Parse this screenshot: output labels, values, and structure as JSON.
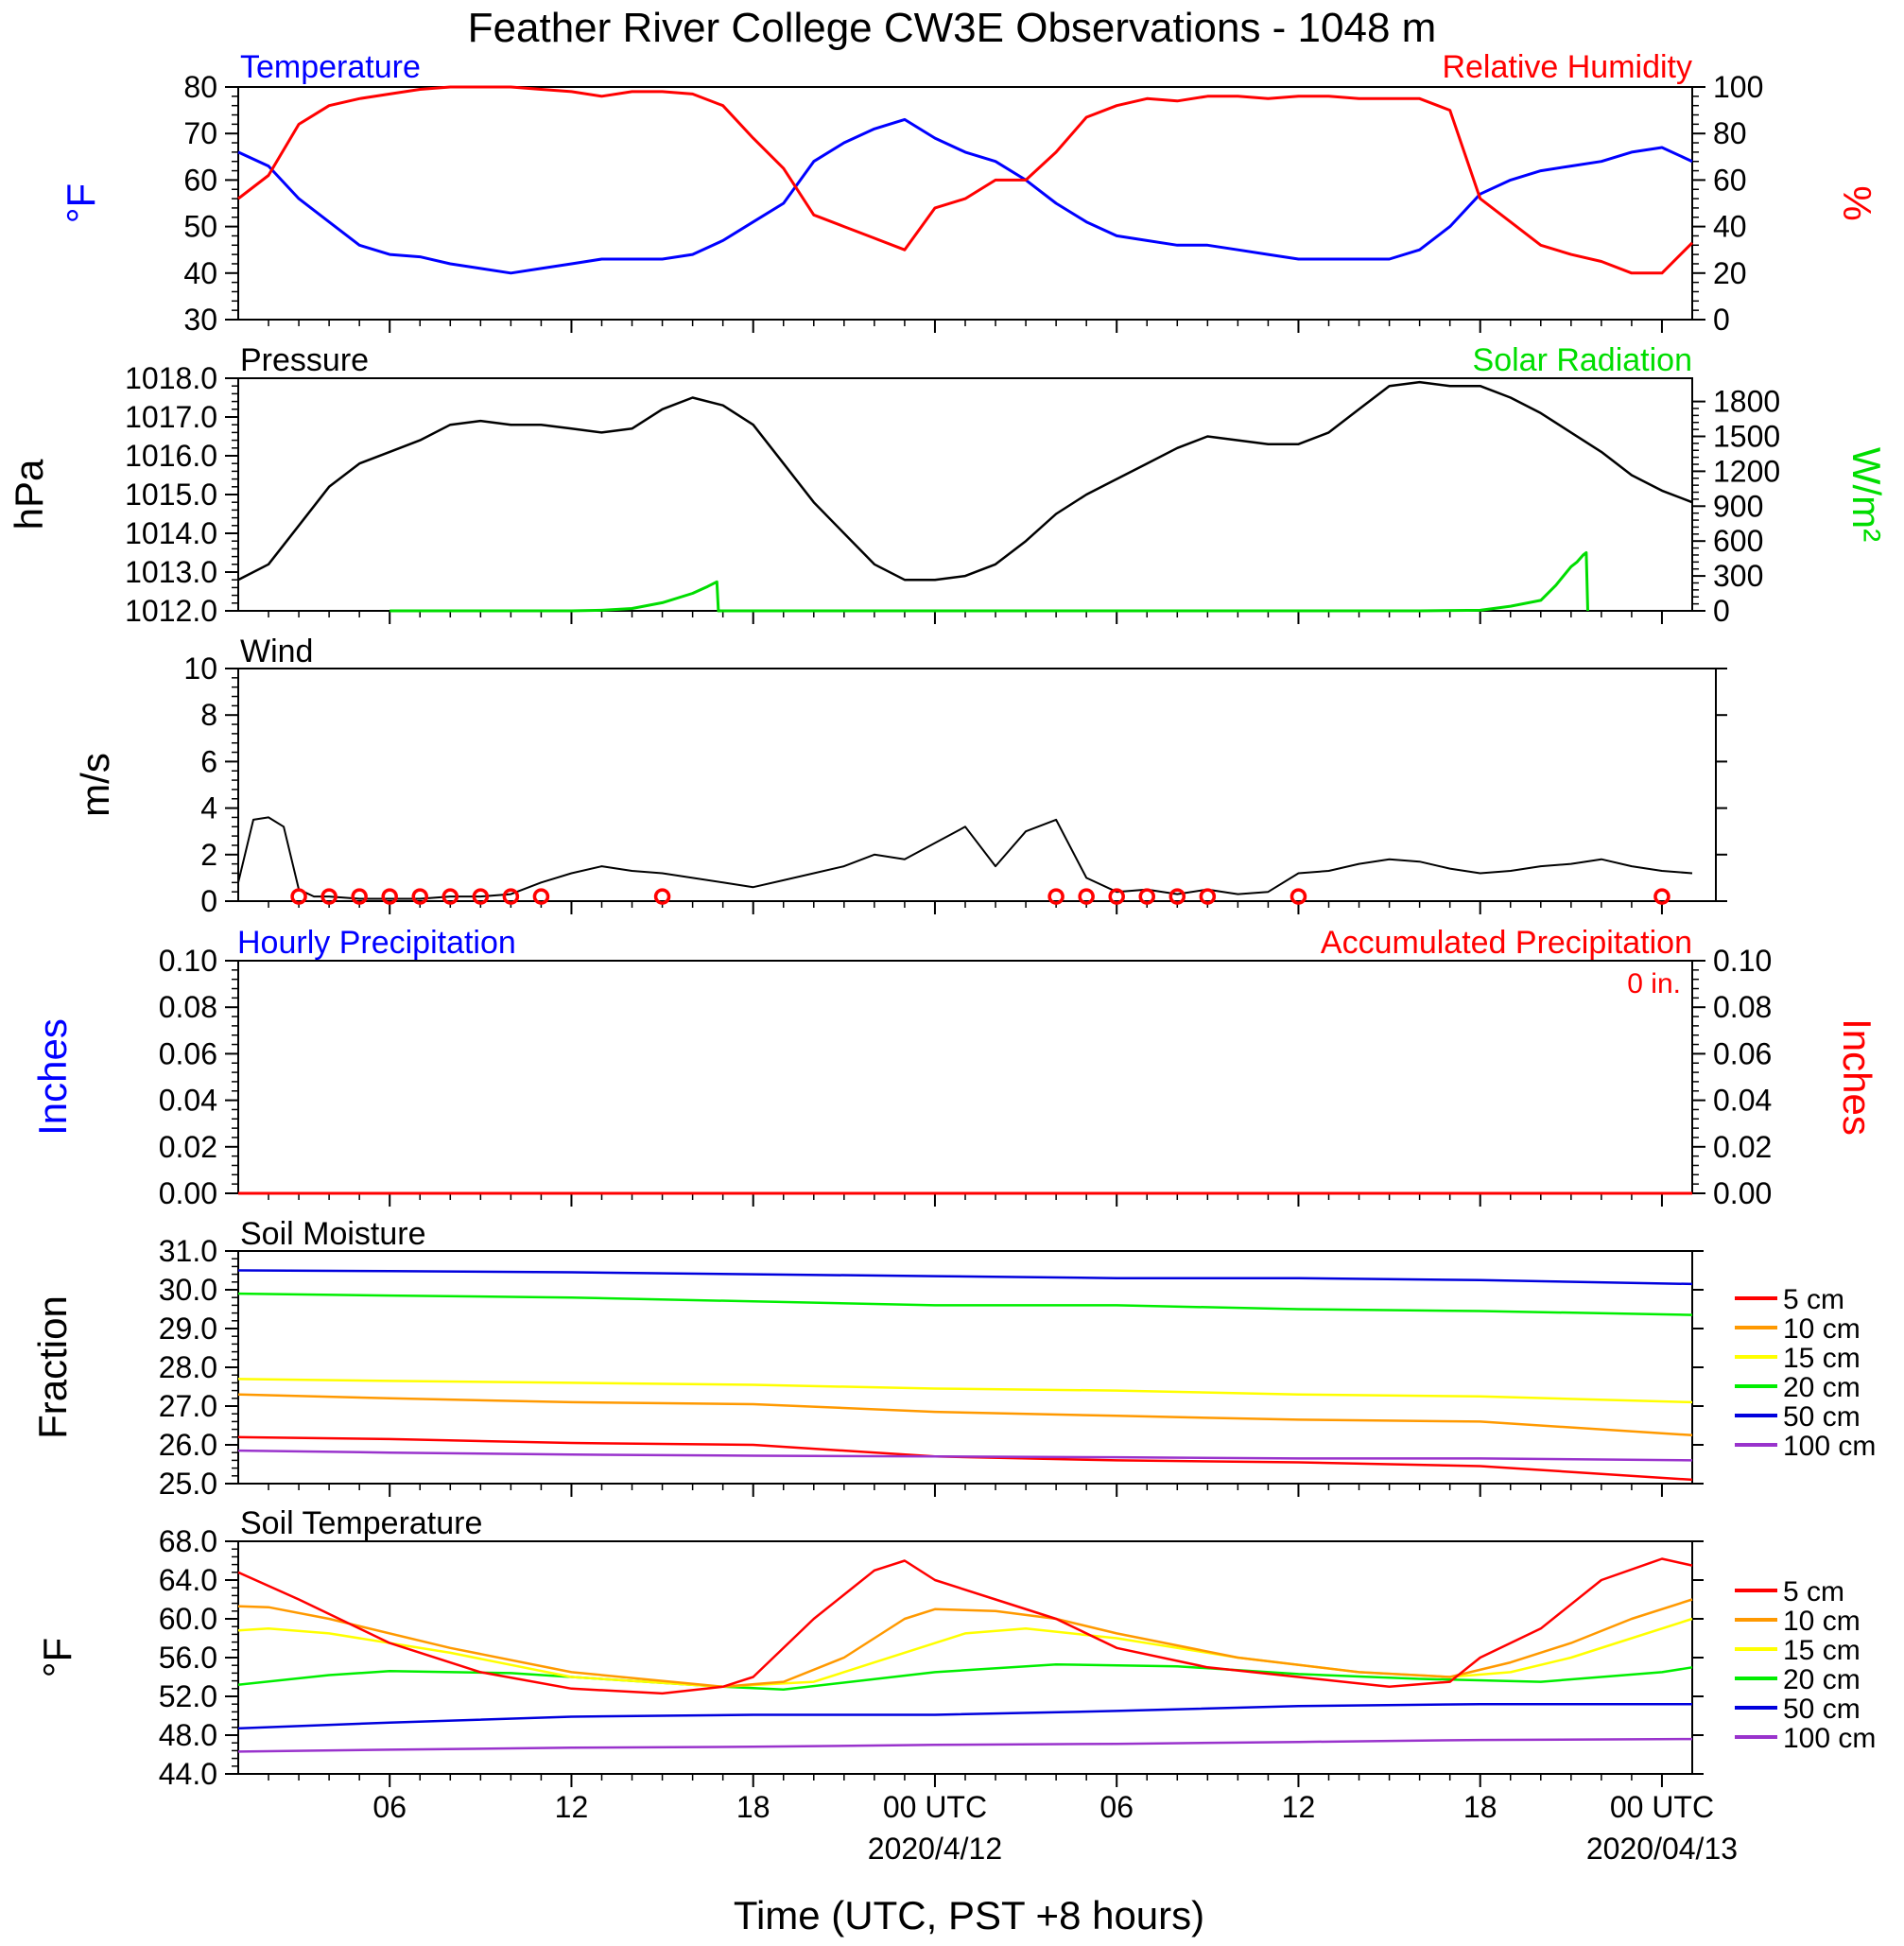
{
  "title": "Feather River College CW3E Observations - 1048 m",
  "xlabel": "Time (UTC, PST +8 hours)",
  "x_axis": {
    "ticks": [
      {
        "hour": 6,
        "label": "06"
      },
      {
        "hour": 12,
        "label": "12"
      },
      {
        "hour": 18,
        "label": "18"
      },
      {
        "hour": 24,
        "label": "00 UTC"
      },
      {
        "hour": 30,
        "label": "06"
      },
      {
        "hour": 36,
        "label": "12"
      },
      {
        "hour": 42,
        "label": "18"
      },
      {
        "hour": 48,
        "label": "00 UTC"
      }
    ],
    "dates": [
      {
        "hour": 24,
        "label": "2020/4/12"
      },
      {
        "hour": 48,
        "label": "2020/04/13"
      }
    ],
    "range_hours": [
      1,
      49
    ]
  },
  "colors": {
    "temperature": "#0000ff",
    "humidity": "#ff0000",
    "solar": "#00dd00",
    "soil_5": "#ff0000",
    "soil_10": "#ff9900",
    "soil_15": "#ffff00",
    "soil_20": "#00ee00",
    "soil_50": "#0000dd",
    "soil_100": "#9933cc"
  },
  "soil_legend": [
    "5 cm",
    "10 cm",
    "15 cm",
    "20 cm",
    "50 cm",
    "100 cm"
  ],
  "panels": {
    "temp": {
      "left_title": "Temperature",
      "right_title": "Relative Humidity",
      "ylabel_left": "°F",
      "ylabel_right": "%",
      "left_ticks": [
        "30",
        "40",
        "50",
        "60",
        "70",
        "80"
      ],
      "right_ticks": [
        "0",
        "20",
        "40",
        "60",
        "80",
        "100"
      ]
    },
    "pressure": {
      "left_title": "Pressure",
      "right_title": "Solar Radiation",
      "ylabel_left": "hPa",
      "ylabel_right": "W/m²",
      "left_ticks": [
        "1012.0",
        "1013.0",
        "1014.0",
        "1015.0",
        "1016.0",
        "1017.0",
        "1018.0"
      ],
      "right_ticks": [
        "0",
        "300",
        "600",
        "900",
        "1200",
        "1500",
        "1800"
      ]
    },
    "wind": {
      "left_title": "Wind",
      "ylabel_left": "m/s",
      "left_ticks": [
        "0",
        "2",
        "4",
        "6",
        "8",
        "10"
      ]
    },
    "precip": {
      "left_title": "Hourly Precipitation",
      "right_title": "Accumulated Precipitation",
      "accum_text": "0 in.",
      "ylabel_left": "Inches",
      "ylabel_right": "Inches",
      "left_ticks": [
        "0.00",
        "0.02",
        "0.04",
        "0.06",
        "0.08",
        "0.10"
      ],
      "right_ticks": [
        "0.00",
        "0.02",
        "0.04",
        "0.06",
        "0.08",
        "0.10"
      ]
    },
    "soilm": {
      "left_title": "Soil Moisture",
      "ylabel_left": "Fraction",
      "left_ticks": [
        "25.0",
        "26.0",
        "27.0",
        "28.0",
        "29.0",
        "30.0",
        "31.0"
      ]
    },
    "soilt": {
      "left_title": "Soil Temperature",
      "ylabel_left": "°F",
      "left_ticks": [
        "44.0",
        "48.0",
        "52.0",
        "56.0",
        "60.0",
        "64.0",
        "68.0"
      ]
    }
  },
  "chart_data": [
    {
      "type": "line",
      "panel": "temp",
      "x_units": "hours since 2020-04-11 00 UTC",
      "ylim_left": [
        30,
        80
      ],
      "ylim_right": [
        0,
        100
      ],
      "series": [
        {
          "name": "Temperature",
          "axis": "left",
          "x": [
            1,
            2,
            3,
            4,
            5,
            6,
            7,
            8,
            9,
            10,
            11,
            12,
            13,
            14,
            15,
            16,
            17,
            18,
            19,
            20,
            21,
            22,
            23,
            24,
            25,
            26,
            27,
            28,
            29,
            30,
            31,
            32,
            33,
            34,
            35,
            36,
            37,
            38,
            39,
            40,
            41,
            42,
            43,
            44,
            45,
            46,
            47,
            48,
            49
          ],
          "y": [
            66,
            63,
            56,
            51,
            46,
            44,
            43.5,
            42,
            41,
            40,
            41,
            42,
            43,
            43,
            43,
            44,
            47,
            51,
            55,
            64,
            68,
            71,
            73,
            69,
            66,
            64,
            60,
            55,
            51,
            48,
            47,
            46,
            46,
            45,
            44,
            43,
            43,
            43,
            43,
            45,
            50,
            57,
            60,
            62,
            63,
            64,
            66,
            67,
            64
          ]
        },
        {
          "name": "Relative Humidity",
          "axis": "right",
          "x": [
            1,
            2,
            3,
            4,
            5,
            6,
            7,
            8,
            9,
            10,
            11,
            12,
            13,
            14,
            15,
            16,
            17,
            18,
            19,
            20,
            21,
            22,
            23,
            24,
            25,
            26,
            27,
            28,
            29,
            30,
            31,
            32,
            33,
            34,
            35,
            36,
            37,
            38,
            39,
            40,
            41,
            42,
            43,
            44,
            45,
            46,
            47,
            48,
            49
          ],
          "y": [
            52,
            62,
            84,
            92,
            95,
            97,
            99,
            100,
            100,
            100,
            99,
            98,
            96,
            98,
            98,
            97,
            92,
            78,
            65,
            45,
            40,
            35,
            30,
            48,
            52,
            60,
            60,
            72,
            87,
            92,
            95,
            94,
            96,
            96,
            95,
            96,
            96,
            95,
            95,
            95,
            90,
            52,
            42,
            32,
            28,
            25,
            20,
            20,
            33
          ]
        }
      ]
    },
    {
      "type": "line",
      "panel": "pressure",
      "ylim_left": [
        1012,
        1018
      ],
      "ylim_right": [
        0,
        2000
      ],
      "series": [
        {
          "name": "Pressure",
          "axis": "left",
          "x": [
            1,
            2,
            3,
            4,
            5,
            6,
            7,
            8,
            9,
            10,
            11,
            12,
            13,
            14,
            15,
            16,
            17,
            18,
            19,
            20,
            21,
            22,
            23,
            24,
            25,
            26,
            27,
            28,
            29,
            30,
            31,
            32,
            33,
            34,
            35,
            36,
            37,
            38,
            39,
            40,
            41,
            42,
            43,
            44,
            45,
            46,
            47,
            48,
            49
          ],
          "y": [
            1012.8,
            1013.2,
            1014.2,
            1015.2,
            1015.8,
            1016.1,
            1016.4,
            1016.8,
            1016.9,
            1016.8,
            1016.8,
            1016.7,
            1016.6,
            1016.7,
            1017.2,
            1017.5,
            1017.3,
            1016.8,
            1015.8,
            1014.8,
            1014.0,
            1013.2,
            1012.8,
            1012.8,
            1012.9,
            1013.2,
            1013.8,
            1014.5,
            1015.0,
            1015.4,
            1015.8,
            1016.2,
            1016.5,
            1016.4,
            1016.3,
            1016.3,
            1016.6,
            1017.2,
            1017.8,
            1017.9,
            1017.8,
            1017.8,
            1017.5,
            1017.1,
            1016.6,
            1016.1,
            1015.5,
            1015.1,
            1014.8
          ]
        },
        {
          "name": "Solar Radiation",
          "axis": "right",
          "x": [
            6,
            8,
            10,
            12,
            13,
            14,
            15,
            16,
            16.5,
            16.8,
            16.85,
            38,
            40,
            42,
            43,
            44,
            44.5,
            45,
            45.2,
            45.4,
            45.5,
            45.55
          ],
          "y": [
            0,
            0,
            0,
            0,
            5,
            20,
            70,
            150,
            210,
            250,
            0,
            0,
            0,
            5,
            40,
            90,
            220,
            380,
            420,
            480,
            500,
            0
          ]
        }
      ]
    },
    {
      "type": "line",
      "panel": "wind",
      "ylim": [
        0,
        10
      ],
      "series": [
        {
          "name": "Wind",
          "x": [
            1,
            1.5,
            2,
            2.5,
            3,
            3.5,
            4,
            5,
            6,
            7,
            8,
            9,
            10,
            11,
            12,
            13,
            14,
            15,
            16,
            17,
            18,
            19,
            20,
            21,
            22,
            23,
            24,
            25,
            26,
            27,
            28,
            29,
            30,
            31,
            32,
            33,
            34,
            35,
            36,
            37,
            38,
            39,
            40,
            41,
            42,
            43,
            44,
            45,
            46,
            47,
            48,
            49
          ],
          "y": [
            0.8,
            3.5,
            3.6,
            3.2,
            0.5,
            0.2,
            0.2,
            0.1,
            0.1,
            0.1,
            0.2,
            0.2,
            0.3,
            0.8,
            1.2,
            1.5,
            1.3,
            1.2,
            1.0,
            0.8,
            0.6,
            0.9,
            1.2,
            1.5,
            2.0,
            1.8,
            2.5,
            3.2,
            1.5,
            3.0,
            3.5,
            1.0,
            0.4,
            0.5,
            0.3,
            0.5,
            0.3,
            0.4,
            1.2,
            1.3,
            1.6,
            1.8,
            1.7,
            1.4,
            1.2,
            1.3,
            1.5,
            1.6,
            1.8,
            1.5,
            1.3,
            1.2
          ]
        }
      ],
      "calm_markers_x": [
        3,
        4,
        5,
        6,
        7,
        8,
        9,
        10,
        11,
        15,
        28,
        29,
        30,
        31,
        32,
        33,
        36,
        48
      ]
    },
    {
      "type": "line",
      "panel": "precip",
      "ylim": [
        0,
        0.1
      ],
      "series": [
        {
          "name": "Hourly Precipitation",
          "x": [
            1,
            49
          ],
          "y": [
            0,
            0
          ]
        },
        {
          "name": "Accumulated Precipitation",
          "x": [
            1,
            49
          ],
          "y": [
            0,
            0
          ]
        }
      ]
    },
    {
      "type": "line",
      "panel": "soilm",
      "ylim": [
        25,
        31
      ],
      "series": [
        {
          "name": "5 cm",
          "x": [
            1,
            6,
            12,
            18,
            24,
            30,
            36,
            42,
            49
          ],
          "y": [
            26.2,
            26.15,
            26.05,
            26.0,
            25.7,
            25.6,
            25.55,
            25.45,
            25.1
          ]
        },
        {
          "name": "10 cm",
          "x": [
            1,
            6,
            12,
            18,
            24,
            30,
            36,
            42,
            49
          ],
          "y": [
            27.3,
            27.2,
            27.1,
            27.05,
            26.85,
            26.75,
            26.65,
            26.6,
            26.25
          ]
        },
        {
          "name": "15 cm",
          "x": [
            1,
            6,
            12,
            18,
            24,
            30,
            36,
            42,
            49
          ],
          "y": [
            27.7,
            27.65,
            27.6,
            27.55,
            27.45,
            27.4,
            27.3,
            27.25,
            27.1
          ]
        },
        {
          "name": "20 cm",
          "x": [
            1,
            6,
            12,
            18,
            24,
            30,
            36,
            42,
            49
          ],
          "y": [
            29.9,
            29.85,
            29.8,
            29.7,
            29.6,
            29.6,
            29.5,
            29.45,
            29.35
          ]
        },
        {
          "name": "50 cm",
          "x": [
            1,
            6,
            12,
            18,
            24,
            30,
            36,
            42,
            49
          ],
          "y": [
            30.5,
            30.48,
            30.45,
            30.4,
            30.35,
            30.3,
            30.3,
            30.25,
            30.15
          ]
        },
        {
          "name": "100 cm",
          "x": [
            1,
            6,
            12,
            18,
            24,
            30,
            36,
            42,
            49
          ],
          "y": [
            25.85,
            25.8,
            25.75,
            25.72,
            25.7,
            25.68,
            25.65,
            25.65,
            25.6
          ]
        }
      ]
    },
    {
      "type": "line",
      "panel": "soilt",
      "ylim": [
        44,
        68
      ],
      "series": [
        {
          "name": "5 cm",
          "x": [
            1,
            3,
            6,
            9,
            12,
            15,
            17,
            18,
            20,
            22,
            23,
            24,
            26,
            28,
            30,
            33,
            36,
            39,
            41,
            42,
            44,
            46,
            48,
            49
          ],
          "y": [
            64.8,
            62,
            57.5,
            54.5,
            52.8,
            52.3,
            53,
            54,
            60,
            65,
            66,
            64,
            62,
            60,
            57,
            55,
            54,
            53,
            53.5,
            56,
            59,
            64,
            66.2,
            65.5
          ]
        },
        {
          "name": "10 cm",
          "x": [
            1,
            2,
            4,
            8,
            12,
            17,
            19,
            21,
            23,
            24,
            26,
            28,
            30,
            34,
            38,
            41,
            43,
            45,
            47,
            49
          ],
          "y": [
            61.3,
            61.2,
            60,
            57,
            54.5,
            53,
            53.5,
            56,
            60,
            61,
            60.8,
            60,
            58.5,
            56,
            54.5,
            54,
            55.5,
            57.5,
            60,
            62
          ]
        },
        {
          "name": "15 cm",
          "x": [
            1,
            2,
            4,
            8,
            12,
            17,
            20,
            22,
            25,
            27,
            30,
            34,
            38,
            41,
            43,
            45,
            47,
            49
          ],
          "y": [
            58.8,
            59,
            58.5,
            56.5,
            54,
            53,
            53.5,
            55.5,
            58.5,
            59,
            58,
            56,
            54.5,
            54,
            54.5,
            56,
            58,
            60
          ]
        },
        {
          "name": "20 cm",
          "x": [
            1,
            4,
            6,
            10,
            14,
            17,
            19,
            24,
            28,
            32,
            36,
            40,
            44,
            48,
            49
          ],
          "y": [
            53.2,
            54.2,
            54.6,
            54.4,
            53.6,
            53,
            52.7,
            54.5,
            55.3,
            55.1,
            54.3,
            53.8,
            53.5,
            54.5,
            55
          ]
        },
        {
          "name": "50 cm",
          "x": [
            1,
            6,
            12,
            18,
            24,
            30,
            36,
            42,
            49
          ],
          "y": [
            48.7,
            49.3,
            49.9,
            50.1,
            50.1,
            50.5,
            51,
            51.2,
            51.2
          ]
        },
        {
          "name": "100 cm",
          "x": [
            1,
            6,
            12,
            18,
            24,
            30,
            36,
            42,
            49
          ],
          "y": [
            46.3,
            46.5,
            46.7,
            46.8,
            47,
            47.1,
            47.3,
            47.5,
            47.6
          ]
        }
      ]
    }
  ]
}
